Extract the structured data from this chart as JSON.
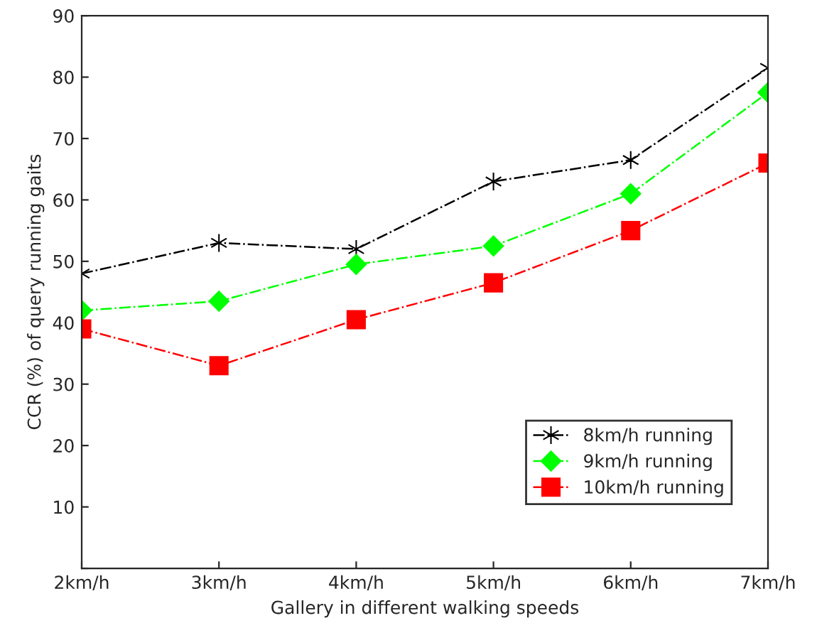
{
  "chart_data": {
    "type": "line",
    "xlabel": "Gallery in different walking speeds",
    "ylabel": "CCR (%) of query running gaits",
    "categories": [
      "2km/h",
      "3km/h",
      "4km/h",
      "5km/h",
      "6km/h",
      "7km/h"
    ],
    "ylim": [
      0,
      90
    ],
    "yticks": [
      {
        "value": 0,
        "label": null
      },
      10,
      20,
      30,
      40,
      50,
      60,
      70,
      80,
      90
    ],
    "line_style": "dashdot",
    "legend": "bottom right",
    "grid": false,
    "series": [
      {
        "name": "8km/h running",
        "color": "#000000",
        "marker": "cross",
        "values": [
          48,
          53,
          52,
          63,
          66.5,
          81.5
        ]
      },
      {
        "name": "9km/h running",
        "color": "#00ff00",
        "marker": "diamond",
        "values": [
          42,
          43.5,
          49.5,
          52.5,
          61,
          77.5
        ]
      },
      {
        "name": "10km/h running",
        "color": "#ff0000",
        "marker": "square",
        "values": [
          39,
          33,
          40.5,
          46.5,
          55,
          66
        ]
      }
    ]
  }
}
